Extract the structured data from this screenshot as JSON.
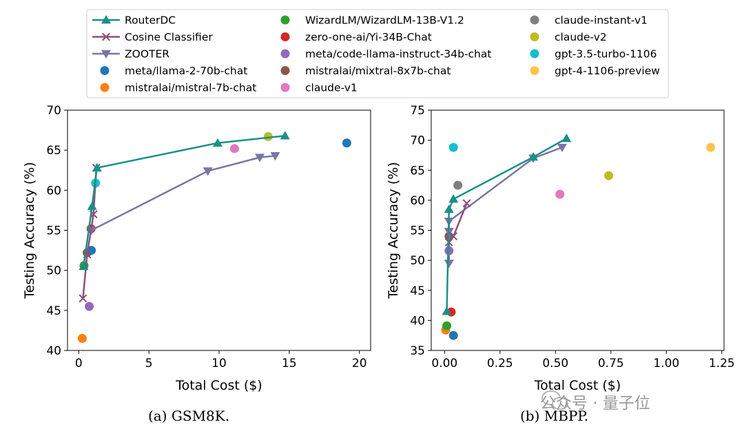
{
  "legend_placement": "top",
  "colors": {
    "routerdc": "#1a9088",
    "cosine": "#8d4e7a",
    "zooter": "#7777a3",
    "meta/llama-2-70b-chat": "#1f77b4",
    "mistralai/mistral-7b-chat": "#ff7f0e",
    "WizardLM/WizardLM-13B-V1.2": "#2ca02c",
    "zero-one-ai/Yi-34B-Chat": "#d62728",
    "meta/code-llama-instruct-34b-chat": "#9467bd",
    "mistralai/mixtral-8x7b-chat": "#8c564b",
    "claude-v1": "#e377c2",
    "claude-instant-v1": "#7f7f7f",
    "claude-v2": "#bcbd22",
    "gpt-3.5-turbo-1106": "#17becf",
    "gpt-4-1106-preview": "#ffc34d"
  },
  "legend": [
    [
      "RouterDC",
      "Cosine Classifier",
      "ZOOTER",
      "meta/llama-2-70b-chat",
      "mistralai/mistral-7b-chat"
    ],
    [
      "WizardLM/WizardLM-13B-V1.2",
      "zero-one-ai/Yi-34B-Chat",
      "meta/code-llama-instruct-34b-chat",
      "mistralai/mixtral-8x7b-chat",
      "claude-v1"
    ],
    [
      "claude-instant-v1",
      "claude-v2",
      "gpt-3.5-turbo-1106",
      "gpt-4-1106-preview"
    ]
  ],
  "legend_markers": {
    "RouterDC": "triangle-up-line",
    "Cosine Classifier": "x-line",
    "ZOOTER": "triangle-down-line"
  },
  "captions": {
    "a": "(a) GSM8K.",
    "b": "(b) MBPP."
  },
  "watermark": "公众号 · 量子位",
  "chart_data": [
    {
      "type": "line",
      "caption": "(a) GSM8K.",
      "xlabel": "Total Cost ($)",
      "ylabel": "Testing Accuracy (%)",
      "xlim": [
        -0.8,
        20.8
      ],
      "ylim": [
        40,
        70
      ],
      "xticks": [
        0,
        5,
        10,
        15,
        20
      ],
      "yticks": [
        40,
        45,
        50,
        55,
        60,
        65,
        70
      ],
      "grid": false,
      "series": [
        {
          "name": "RouterDC",
          "marker": "triangle-up",
          "x": [
            0.35,
            0.95,
            1.3,
            9.9,
            14.7
          ],
          "y": [
            50.5,
            58.0,
            62.8,
            65.9,
            66.8
          ]
        },
        {
          "name": "Cosine Classifier",
          "marker": "x",
          "x": [
            0.3,
            0.6,
            1.05,
            1.25
          ],
          "y": [
            46.5,
            52.0,
            57.0,
            62.8
          ]
        },
        {
          "name": "ZOOTER",
          "marker": "triangle-down",
          "x": [
            0.9,
            9.2,
            12.9,
            14.0
          ],
          "y": [
            55.0,
            62.4,
            64.1,
            64.3
          ]
        }
      ],
      "points": [
        {
          "name": "meta/llama-2-70b-chat",
          "x": 19.1,
          "y": 65.9
        },
        {
          "name": "mistralai/mistral-7b-chat",
          "x": 0.25,
          "y": 41.5
        },
        {
          "name": "WizardLM/WizardLM-13B-V1.2",
          "x": 0.38,
          "y": 50.6
        },
        {
          "name": "zero-one-ai/Yi-34B-Chat",
          "x": 0.88,
          "y": 55.2
        },
        {
          "name": "meta/code-llama-instruct-34b-chat",
          "x": 0.75,
          "y": 45.5
        },
        {
          "name": "mistralai/mixtral-8x7b-chat",
          "x": 0.6,
          "y": 52.2
        },
        {
          "name": "claude-v1",
          "x": 11.1,
          "y": 65.2
        },
        {
          "name": "claude-v2",
          "x": 13.5,
          "y": 66.7
        },
        {
          "name": "gpt-3.5-turbo-1106",
          "x": 1.2,
          "y": 60.9
        },
        {
          "name": "meta/llama-2-70b-chat",
          "x": 0.9,
          "y": 52.5
        }
      ]
    },
    {
      "type": "line",
      "caption": "(b) MBPP.",
      "xlabel": "Total Cost ($)",
      "ylabel": "Testing Accuracy (%)",
      "xlim": [
        -0.06,
        1.26
      ],
      "ylim": [
        35,
        75
      ],
      "xticks": [
        0.0,
        0.25,
        0.5,
        0.75,
        1.0,
        1.25
      ],
      "yticks": [
        35,
        40,
        45,
        50,
        55,
        60,
        65,
        70,
        75
      ],
      "grid": false,
      "series": [
        {
          "name": "RouterDC",
          "marker": "triangle-up",
          "x": [
            0.01,
            0.02,
            0.04,
            0.4,
            0.55
          ],
          "y": [
            41.5,
            58.5,
            60.2,
            67.2,
            70.3
          ]
        },
        {
          "name": "Cosine Classifier",
          "marker": "x",
          "x": [
            0.02,
            0.04,
            0.1
          ],
          "y": [
            53.0,
            54.0,
            59.5
          ]
        },
        {
          "name": "ZOOTER",
          "marker": "triangle-down",
          "x": [
            0.02,
            0.02,
            0.02,
            0.4,
            0.53
          ],
          "y": [
            49.5,
            54.8,
            56.5,
            67.0,
            68.8
          ]
        }
      ],
      "points": [
        {
          "name": "meta/llama-2-70b-chat",
          "x": 0.04,
          "y": 37.5
        },
        {
          "name": "mistralai/mistral-7b-chat",
          "x": 0.005,
          "y": 38.4
        },
        {
          "name": "WizardLM/WizardLM-13B-V1.2",
          "x": 0.01,
          "y": 39.1
        },
        {
          "name": "zero-one-ai/Yi-34B-Chat",
          "x": 0.03,
          "y": 41.4
        },
        {
          "name": "meta/code-llama-instruct-34b-chat",
          "x": 0.02,
          "y": 51.6
        },
        {
          "name": "mistralai/mixtral-8x7b-chat",
          "x": 0.02,
          "y": 54.0
        },
        {
          "name": "claude-v1",
          "x": 0.52,
          "y": 61.0
        },
        {
          "name": "claude-instant-v1",
          "x": 0.06,
          "y": 62.5
        },
        {
          "name": "claude-v2",
          "x": 0.74,
          "y": 64.1
        },
        {
          "name": "gpt-3.5-turbo-1106",
          "x": 0.04,
          "y": 68.8
        },
        {
          "name": "gpt-4-1106-preview",
          "x": 1.2,
          "y": 68.8
        }
      ]
    }
  ]
}
